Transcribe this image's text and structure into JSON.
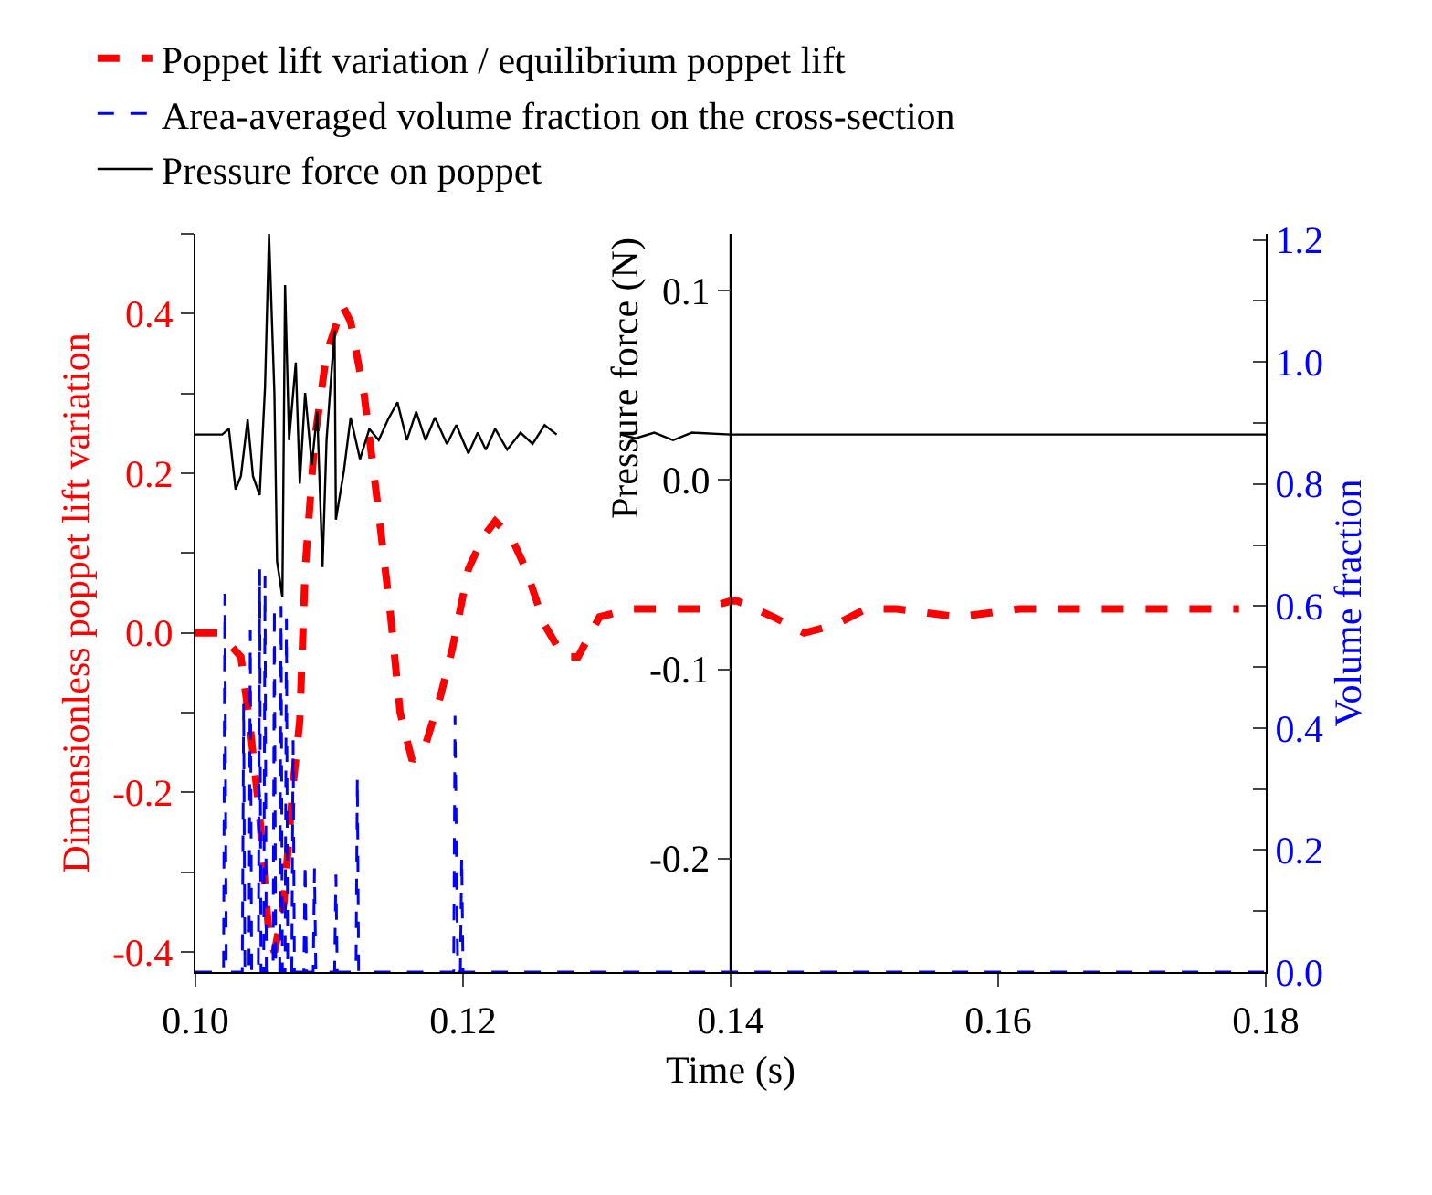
{
  "chart_data": {
    "type": "line",
    "xlabel": "Time (s)",
    "ylabel": "Dimensionless poppet lift variation",
    "y2label": "Volume fraction",
    "y3label": "Pressure force (N)",
    "xlim": [
      0.1,
      0.18
    ],
    "xticks": [
      {
        "value": 0.1,
        "label": "0.10"
      },
      {
        "value": 0.12,
        "label": "0.12"
      },
      {
        "value": 0.14,
        "label": "0.14"
      },
      {
        "value": 0.16,
        "label": "0.16"
      },
      {
        "value": 0.18,
        "label": "0.18"
      }
    ],
    "ylim": [
      -0.425,
      0.5
    ],
    "yticks": [
      {
        "value": -0.4,
        "label": "-0.4"
      },
      {
        "value": -0.3,
        "label": null
      },
      {
        "value": -0.2,
        "label": "-0.2"
      },
      {
        "value": -0.1,
        "label": null
      },
      {
        "value": 0,
        "label": "0.0"
      },
      {
        "value": 0.1,
        "label": null
      },
      {
        "value": 0.2,
        "label": "0.2"
      },
      {
        "value": 0.3,
        "label": null
      },
      {
        "value": 0.4,
        "label": "0.4"
      },
      {
        "value": 0.5,
        "label": null
      }
    ],
    "y2lim": [
      0,
      1.21
    ],
    "y2ticks": [
      {
        "value": 0,
        "label": "0.0"
      },
      {
        "value": 0.1,
        "label": null
      },
      {
        "value": 0.2,
        "label": "0.2"
      },
      {
        "value": 0.3,
        "label": null
      },
      {
        "value": 0.4,
        "label": "0.4"
      },
      {
        "value": 0.5,
        "label": null
      },
      {
        "value": 0.6,
        "label": "0.6"
      },
      {
        "value": 0.7,
        "label": null
      },
      {
        "value": 0.8,
        "label": "0.8"
      },
      {
        "value": 0.9,
        "label": null
      },
      {
        "value": 1.0,
        "label": "1.0"
      },
      {
        "value": 1.1,
        "label": null
      },
      {
        "value": 1.2,
        "label": "1.2"
      }
    ],
    "y3lim": [
      -0.26,
      0.13
    ],
    "y3ticks": [
      {
        "value": -0.2,
        "label": "-0.2"
      },
      {
        "value": -0.1,
        "label": "-0.1"
      },
      {
        "value": 0,
        "label": "0.0"
      },
      {
        "value": 0.1,
        "label": "0.1"
      }
    ],
    "ref_lines": [
      {
        "axis": "x",
        "value": 0.14,
        "color": "#000000"
      }
    ],
    "legend": "top left",
    "grid": false,
    "marker": "none",
    "series": [
      {
        "name": "Poppet lift variation / equilibrium poppet lift",
        "color": "#ff0000",
        "line_style": "dashed",
        "axis": "y",
        "x": [
          0.1,
          0.1018,
          0.1034,
          0.1041,
          0.1048,
          0.1055,
          0.1059,
          0.1066,
          0.1073,
          0.1078,
          0.1082,
          0.1089,
          0.1098,
          0.111,
          0.1116,
          0.1126,
          0.1137,
          0.1146,
          0.1153,
          0.1162,
          0.1172,
          0.1183,
          0.1192,
          0.1204,
          0.1215,
          0.1224,
          0.1236,
          0.1247,
          0.1261,
          0.1275,
          0.1286,
          0.1302,
          0.1325,
          0.1353,
          0.138,
          0.14,
          0.1405,
          0.1432,
          0.1455,
          0.1478,
          0.1501,
          0.1524,
          0.157,
          0.1616,
          0.1661,
          0.1707,
          0.178
        ],
        "values": [
          0,
          0,
          -0.03,
          -0.12,
          -0.23,
          -0.38,
          -0.4,
          -0.34,
          -0.19,
          -0.11,
          0.08,
          0.24,
          0.35,
          0.41,
          0.39,
          0.3,
          0.15,
          0.02,
          -0.1,
          -0.16,
          -0.14,
          -0.08,
          -0.02,
          0.08,
          0.12,
          0.14,
          0.12,
          0.08,
          0.01,
          -0.03,
          -0.03,
          0.02,
          0.03,
          0.03,
          0.03,
          0.04,
          0.04,
          0.02,
          0.0,
          0.01,
          0.03,
          0.03,
          0.02,
          0.03,
          0.03,
          0.03,
          0.03
        ]
      },
      {
        "name": "Area-averaged volume fraction on the cross-section",
        "color": "#0000ff",
        "line_style": "dashed",
        "axis": "y2",
        "x": [
          0.1,
          0.1021,
          0.1022,
          0.1023,
          0.1035,
          0.1036,
          0.1037,
          0.104,
          0.1041,
          0.1042,
          0.1047,
          0.1048,
          0.1049,
          0.1051,
          0.1052,
          0.1053,
          0.1058,
          0.1059,
          0.106,
          0.1063,
          0.1064,
          0.1065,
          0.1067,
          0.1068,
          0.1069,
          0.1072,
          0.1073,
          0.1074,
          0.1081,
          0.1082,
          0.1083,
          0.1088,
          0.1089,
          0.109,
          0.1104,
          0.1105,
          0.1106,
          0.112,
          0.1121,
          0.1122,
          0.1193,
          0.1194,
          0.1196,
          0.1198,
          0.1199,
          0.12,
          0.18
        ],
        "values": [
          0,
          0,
          0.62,
          0,
          0,
          0.44,
          0,
          0,
          0.56,
          0,
          0,
          0.66,
          0,
          0,
          0.65,
          0,
          0,
          0.6,
          0,
          0,
          0.6,
          0,
          0,
          0.58,
          0,
          0,
          0.38,
          0,
          0,
          0.18,
          0,
          0,
          0.17,
          0,
          0,
          0.16,
          0,
          0,
          0.32,
          0,
          0,
          0.42,
          0,
          0,
          0.19,
          0,
          0
        ]
      },
      {
        "name": "Pressure force on poppet",
        "color": "#000000",
        "line_style": "solid",
        "axis": "y3",
        "x": [
          0.1,
          0.102,
          0.1025,
          0.103,
          0.1034,
          0.1039,
          0.1043,
          0.1048,
          0.1052,
          0.1055,
          0.1059,
          0.1061,
          0.1065,
          0.1067,
          0.107,
          0.1075,
          0.1078,
          0.1082,
          0.1087,
          0.1091,
          0.1095,
          0.1098,
          0.1104,
          0.1105,
          0.1111,
          0.1116,
          0.1123,
          0.113,
          0.1137,
          0.1144,
          0.1151,
          0.1158,
          0.1165,
          0.1172,
          0.1179,
          0.1188,
          0.1195,
          0.1204,
          0.1211,
          0.1217,
          0.1224,
          0.1233,
          0.1243,
          0.1252,
          0.1261,
          0.127,
          null,
          0.1318,
          0.1329,
          0.1343,
          0.1357,
          0.1371,
          0.14,
          0.1455,
          0.1524,
          0.18
        ],
        "values": [
          0.024,
          0.024,
          0.027,
          -0.005,
          0.002,
          0.032,
          0.002,
          -0.008,
          0.049,
          0.13,
          0.046,
          -0.043,
          -0.062,
          0.103,
          0.021,
          0.062,
          -0.002,
          0.046,
          0.008,
          0.036,
          -0.046,
          0.021,
          0.079,
          -0.021,
          0.005,
          0.033,
          0.011,
          0.027,
          0.021,
          0.032,
          0.041,
          0.021,
          0.036,
          0.021,
          0.033,
          0.019,
          0.029,
          0.014,
          0.025,
          0.016,
          0.027,
          0.016,
          0.025,
          0.019,
          0.029,
          0.024,
          null,
          0.024,
          0.022,
          0.025,
          0.021,
          0.025,
          0.024,
          0.024,
          0.024,
          0.024
        ]
      }
    ]
  }
}
